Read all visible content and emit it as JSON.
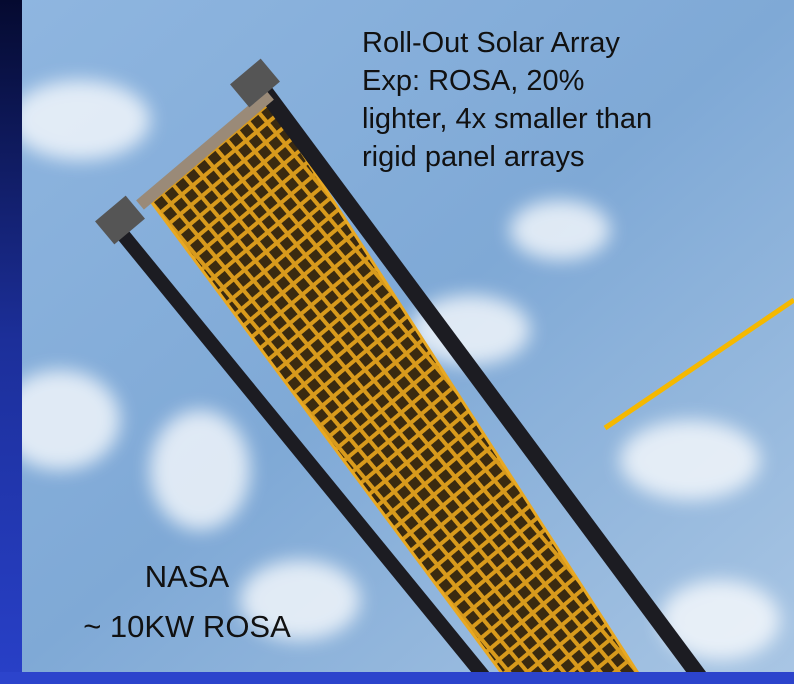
{
  "caption": {
    "lines": [
      "Roll-Out Solar Array",
      "Exp: ROSA, 20%",
      "lighter, 4x smaller than",
      "rigid panel arrays"
    ]
  },
  "label": {
    "lines": [
      "NASA",
      "~ 10KW ROSA"
    ]
  }
}
